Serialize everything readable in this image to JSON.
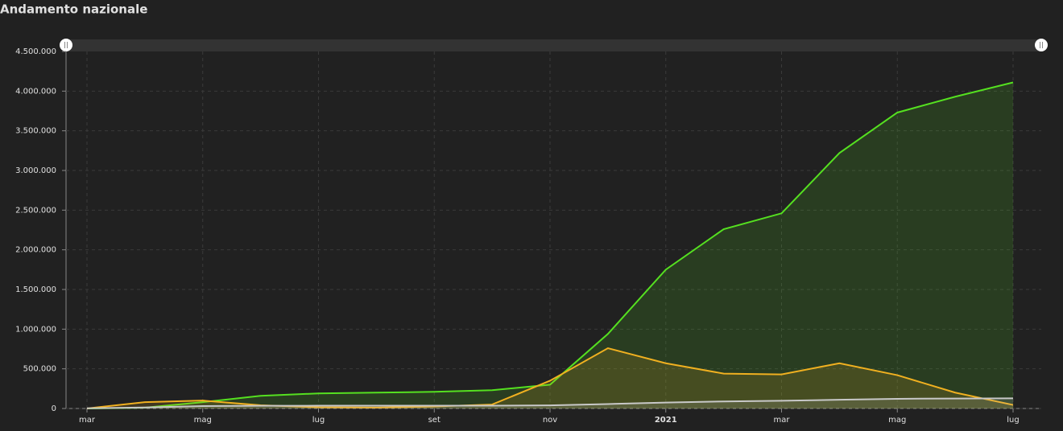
{
  "chart_data": {
    "type": "area",
    "title": "Andamento nazionale",
    "categories": [
      "mar",
      null,
      "mag",
      null,
      "lug",
      null,
      "set",
      null,
      "nov",
      null,
      "2021",
      null,
      "mar",
      null,
      "mag",
      null,
      "lug"
    ],
    "series": [
      {
        "color": "#55e020",
        "values": [
          0,
          10000,
          80000,
          160000,
          190000,
          200000,
          210000,
          230000,
          300000,
          940000,
          1750000,
          2260000,
          2460000,
          3220000,
          3730000,
          3930000,
          4110000
        ]
      },
      {
        "color": "#f0b020",
        "values": [
          0,
          80000,
          100000,
          40000,
          15000,
          12000,
          25000,
          50000,
          350000,
          760000,
          570000,
          440000,
          430000,
          570000,
          420000,
          200000,
          45000
        ]
      },
      {
        "color": "#c8c8c8",
        "values": [
          2000,
          13000,
          30000,
          34000,
          35000,
          35000,
          36000,
          36000,
          39000,
          56000,
          75000,
          89000,
          98000,
          110000,
          122000,
          126000,
          128000
        ]
      }
    ],
    "ylim": [
      0,
      4500000
    ],
    "yticks": [
      0,
      {
        "value": 500000,
        "label": "500.000"
      },
      {
        "value": 1000000,
        "label": "1.000.000"
      },
      {
        "value": 1500000,
        "label": "1.500.000"
      },
      {
        "value": 2000000,
        "label": "2.000.000"
      },
      {
        "value": 2500000,
        "label": "2.500.000"
      },
      {
        "value": 3000000,
        "label": "3.000.000"
      },
      {
        "value": 3500000,
        "label": "3.500.000"
      },
      {
        "value": 4000000,
        "label": "4.000.000"
      },
      {
        "value": 4500000,
        "label": "4.500.000"
      }
    ],
    "grid": true
  }
}
